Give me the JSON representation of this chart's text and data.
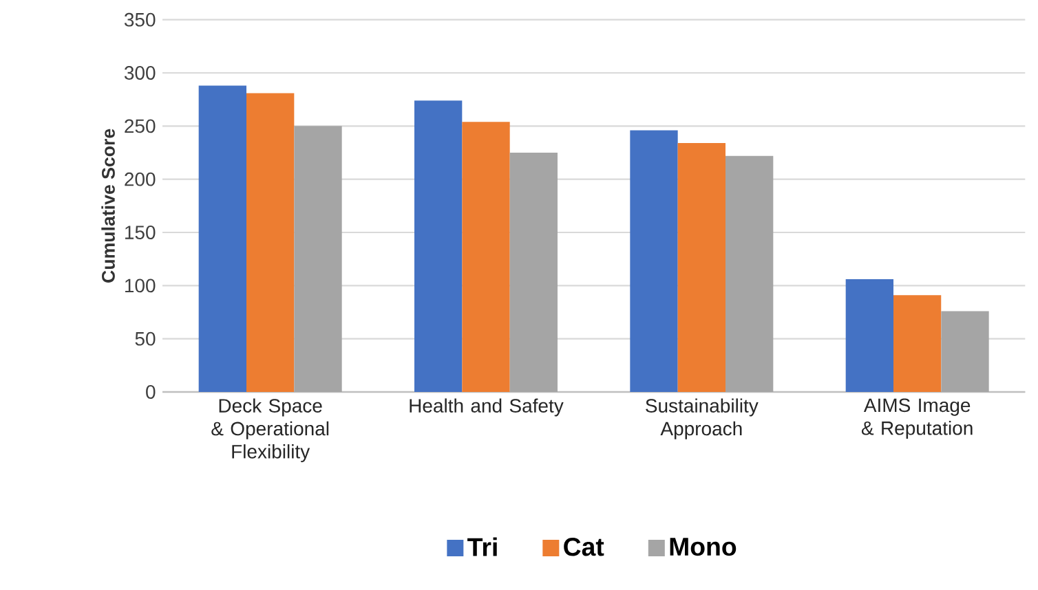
{
  "chart_data": {
    "type": "bar",
    "ylabel": "Cumulative Score",
    "categories": [
      "Deck Space & Operational Flexibility",
      "Health and Safety",
      "Sustainability Approach",
      "AIMS Image & Reputation"
    ],
    "series": [
      {
        "name": "Tri",
        "color": "#4472c4",
        "values": [
          288,
          274,
          246,
          106
        ]
      },
      {
        "name": "Cat",
        "color": "#ed7d31",
        "values": [
          281,
          254,
          234,
          91
        ]
      },
      {
        "name": "Mono",
        "color": "#a5a5a5",
        "values": [
          250,
          225,
          222,
          76
        ]
      }
    ],
    "ylim": [
      0,
      350
    ],
    "yticks": [
      0,
      50,
      100,
      150,
      200,
      250,
      300,
      350
    ],
    "grid": "y",
    "legend": "bottom"
  }
}
